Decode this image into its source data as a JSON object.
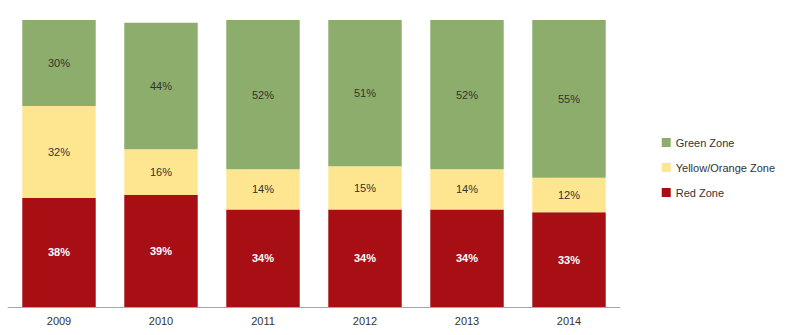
{
  "chart_data": {
    "type": "bar",
    "stacked": true,
    "categories": [
      "2009",
      "2010",
      "2011",
      "2012",
      "2013",
      "2014"
    ],
    "series": [
      {
        "name": "Red Zone",
        "color": "#a80f14",
        "values": [
          38,
          39,
          34,
          34,
          34,
          33
        ],
        "value_labels": [
          "38%",
          "39%",
          "34%",
          "34%",
          "34%",
          "33%"
        ]
      },
      {
        "name": "Yellow/Orange Zone",
        "color": "#fde68f",
        "values": [
          32,
          16,
          14,
          15,
          14,
          12
        ],
        "value_labels": [
          "32%",
          "16%",
          "14%",
          "15%",
          "14%",
          "12%"
        ]
      },
      {
        "name": "Green Zone",
        "color": "#8dad6c",
        "values": [
          30,
          44,
          52,
          51,
          52,
          55
        ],
        "value_labels": [
          "30%",
          "44%",
          "52%",
          "51%",
          "52%",
          "55%"
        ]
      }
    ],
    "ylim": [
      0,
      100
    ],
    "data_labels": true,
    "tick_labels": "x",
    "legend": "right",
    "grid": false
  }
}
